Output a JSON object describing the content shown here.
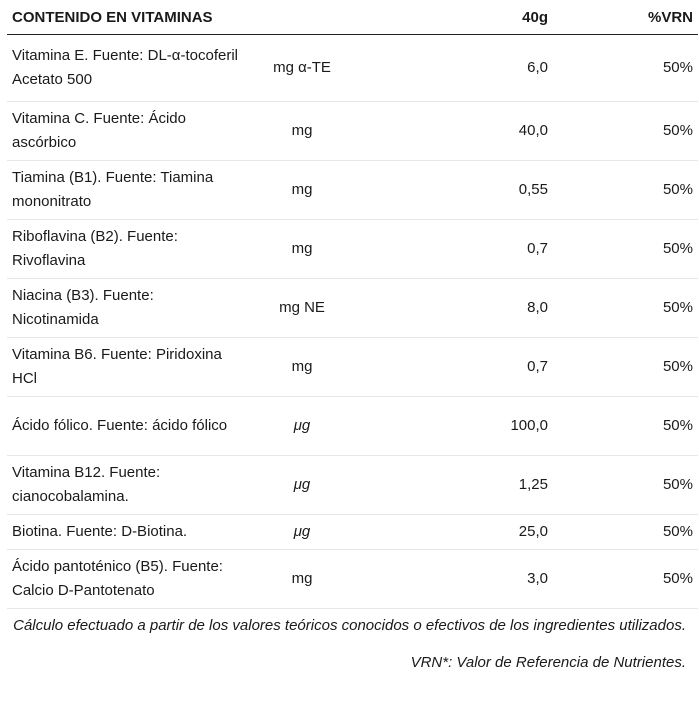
{
  "table": {
    "headers": {
      "name": "CONTENIDO EN VITAMINAS",
      "unit": "",
      "amount": "40g",
      "vrn": "%VRN"
    },
    "rows": [
      {
        "name": "Vitamina E. Fuente: DL-α-tocoferil Acetato 500",
        "unit": "mg α-TE",
        "amount": "6,0",
        "vrn": "50%"
      },
      {
        "name": "Vitamina C. Fuente: Ácido ascórbico",
        "unit": "mg",
        "amount": "40,0",
        "vrn": "50%"
      },
      {
        "name": "Tiamina (B1). Fuente: Tiamina mononitrato",
        "unit": "mg",
        "amount": "0,55",
        "vrn": "50%"
      },
      {
        "name": "Riboflavina (B2). Fuente: Rivoflavina",
        "unit": "mg",
        "amount": "0,7",
        "vrn": "50%"
      },
      {
        "name": "Niacina (B3). Fuente: Nicotinamida",
        "unit": "mg NE",
        "amount": "8,0",
        "vrn": "50%"
      },
      {
        "name": "Vitamina B6. Fuente: Piridoxina HCl",
        "unit": "mg",
        "amount": "0,7",
        "vrn": "50%"
      },
      {
        "name": "Ácido fólico. Fuente: ácido fólico",
        "unit": "μg",
        "amount": "100,0",
        "vrn": "50%"
      },
      {
        "name": "Vitamina B12. Fuente: cianocobalamina.",
        "unit": "μg",
        "amount": "1,25",
        "vrn": "50%"
      },
      {
        "name": "Biotina. Fuente: D-Biotina.",
        "unit": "μg",
        "amount": "25,0",
        "vrn": "50%"
      },
      {
        "name": "Ácido pantoténico (B5). Fuente: Calcio D-Pantotenato",
        "unit": "mg",
        "amount": "3,0",
        "vrn": "50%"
      }
    ]
  },
  "notes": {
    "calculation": "Cálculo efectuado a partir de los valores teóricos conocidos o efectivos de los ingredientes utilizados.",
    "vrn_definition": "VRN*: Valor de Referencia de Nutrientes."
  }
}
